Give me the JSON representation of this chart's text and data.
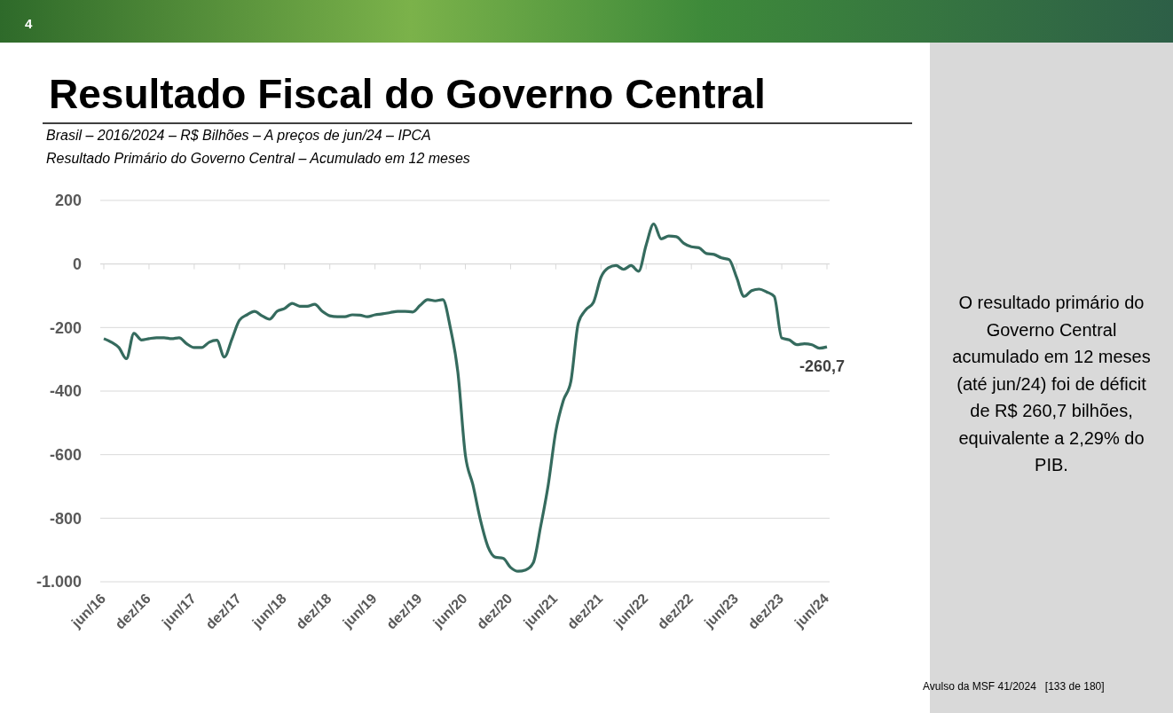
{
  "chart_data": {
    "type": "line",
    "title": "Resultado Fiscal do Governo Central",
    "subtitle": "Brasil – 2016/2024 – R$ Bilhões – A preços de jun/24 – IPCA\nResultado Primário do Governo Central – Acumulado em 12 meses",
    "categories": [
      "jun/16",
      null,
      null,
      null,
      null,
      null,
      "dez/16",
      null,
      null,
      null,
      null,
      null,
      "jun/17",
      null,
      null,
      null,
      null,
      null,
      "dez/17",
      null,
      null,
      null,
      null,
      null,
      "jun/18",
      null,
      null,
      null,
      null,
      null,
      "dez/18",
      null,
      null,
      null,
      null,
      null,
      "jun/19",
      null,
      null,
      null,
      null,
      null,
      "dez/19",
      null,
      null,
      null,
      null,
      null,
      "jun/20",
      null,
      null,
      null,
      null,
      null,
      "dez/20",
      null,
      null,
      null,
      null,
      null,
      "jun/21",
      null,
      null,
      null,
      null,
      null,
      "dez/21",
      null,
      null,
      null,
      null,
      null,
      "jun/22",
      null,
      null,
      null,
      null,
      null,
      "dez/22",
      null,
      null,
      null,
      null,
      null,
      "jun/23",
      null,
      null,
      null,
      null,
      null,
      "dez/23",
      null,
      null,
      null,
      null,
      null,
      "jun/24"
    ],
    "series": [
      {
        "color": "#356b5e",
        "values": [
          -235,
          -246,
          -263,
          -298,
          -218,
          -239,
          -235,
          -232,
          -232,
          -235,
          -232,
          -251,
          -263,
          -263,
          -246,
          -240,
          -293,
          -237,
          -177,
          -160,
          -149,
          -163,
          -174,
          -149,
          -140,
          -124,
          -133,
          -133,
          -127,
          -149,
          -163,
          -166,
          -166,
          -160,
          -161,
          -166,
          -160,
          -157,
          -153,
          -149,
          -149,
          -151,
          -130,
          -112,
          -116,
          -112,
          -200,
          -340,
          -602,
          -695,
          -806,
          -890,
          -923,
          -926,
          -955,
          -967,
          -963,
          -941,
          -825,
          -695,
          -527,
          -430,
          -370,
          -185,
          -144,
          -121,
          -42,
          -12,
          -5,
          -17,
          -5,
          -23,
          60,
          126,
          79,
          88,
          86,
          65,
          54,
          51,
          33,
          30,
          19,
          14,
          -42,
          -102,
          -84,
          -79,
          -88,
          -102,
          -233,
          -239,
          -254,
          -251,
          -254,
          -265,
          -260.7
        ],
        "value_labels": [
          null,
          null,
          null,
          null,
          null,
          null,
          null,
          null,
          null,
          null,
          null,
          null,
          null,
          null,
          null,
          null,
          null,
          null,
          null,
          null,
          null,
          null,
          null,
          null,
          null,
          null,
          null,
          null,
          null,
          null,
          null,
          null,
          null,
          null,
          null,
          null,
          null,
          null,
          null,
          null,
          null,
          null,
          null,
          null,
          null,
          null,
          null,
          null,
          null,
          null,
          null,
          null,
          null,
          null,
          null,
          null,
          null,
          null,
          null,
          null,
          null,
          null,
          null,
          null,
          null,
          null,
          null,
          null,
          null,
          null,
          null,
          null,
          null,
          null,
          null,
          null,
          null,
          null,
          null,
          null,
          null,
          null,
          null,
          null,
          null,
          null,
          null,
          null,
          null,
          null,
          null,
          null,
          null,
          null,
          null,
          null,
          "-260,7"
        ]
      }
    ],
    "ylim": [
      -1000,
      200
    ],
    "yticks": [
      {
        "value": 200,
        "label": "200"
      },
      {
        "value": 0,
        "label": "0"
      },
      {
        "value": -200,
        "label": "-200"
      },
      {
        "value": -400,
        "label": "-400"
      },
      {
        "value": -600,
        "label": "-600"
      },
      {
        "value": -800,
        "label": "-800"
      },
      {
        "value": -1000,
        "label": "-1.000"
      }
    ],
    "grid": "y",
    "marker": "none",
    "line_style": "solid",
    "annotations": [
      "4",
      "O resultado primário do Governo Central acumulado em 12 meses (até jun/24) foi de déficit de R$ 260,7 bilhões, equivalente a 2,29% do PIB.",
      "Avulso da MSF 41/2024   [133 de 180]"
    ]
  }
}
